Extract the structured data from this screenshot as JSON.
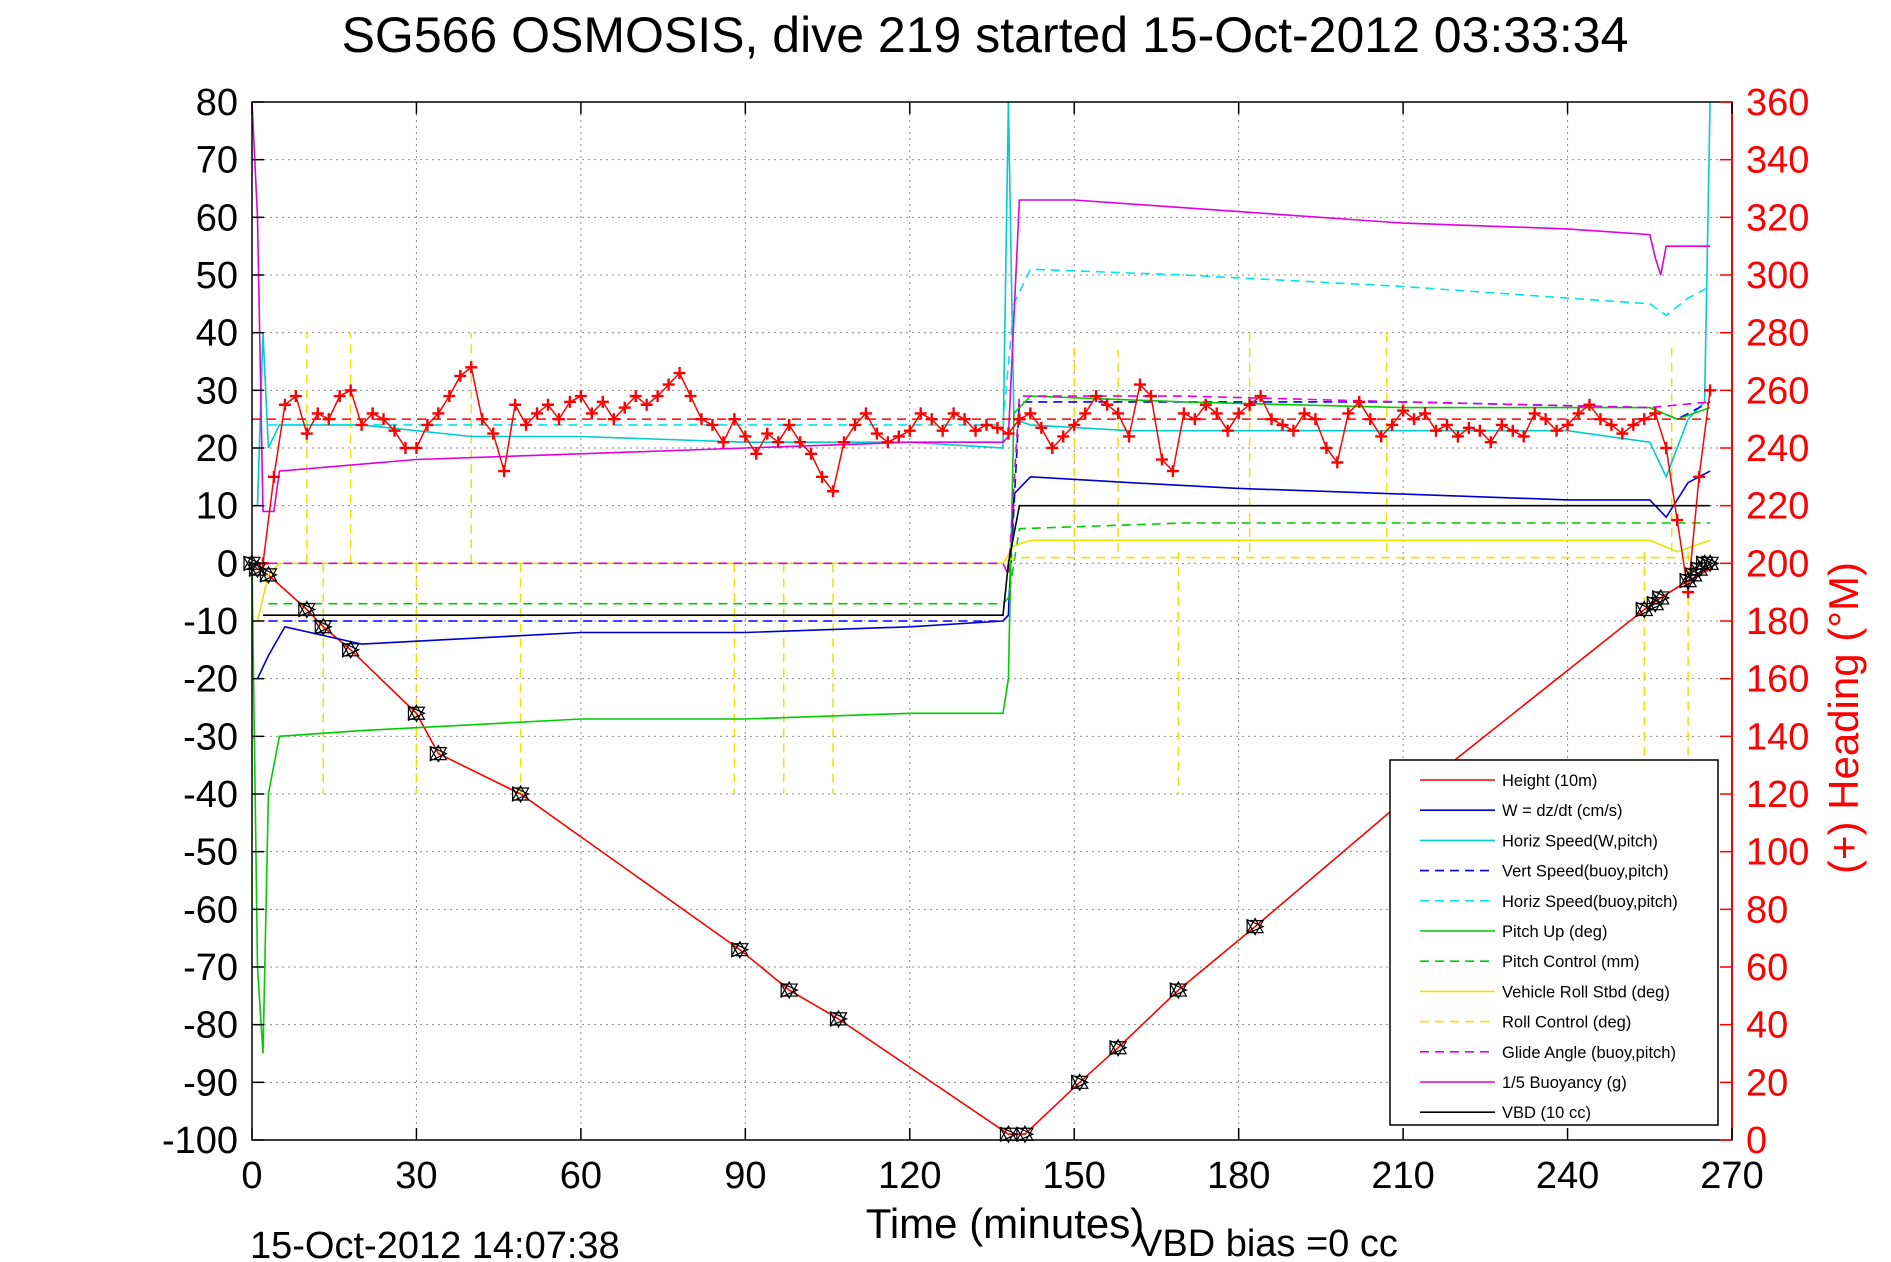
{
  "chart_data": {
    "type": "line",
    "title": "SG566 OSMOSIS, dive 219 started 15-Oct-2012 03:33:34",
    "xlabel": "Time (minutes)",
    "ylabel_right": "(+) Heading (°M)",
    "footer_left": "15-Oct-2012 14:07:38",
    "footer_right": "VBD bias =0 cc",
    "xlim": [
      0,
      270
    ],
    "ylim": [
      -100,
      80
    ],
    "ylim_right": [
      0,
      360
    ],
    "xticks": [
      0,
      30,
      60,
      90,
      120,
      150,
      180,
      210,
      240,
      270
    ],
    "yticks": [
      -100,
      -90,
      -80,
      -70,
      -60,
      -50,
      -40,
      -30,
      -20,
      -10,
      0,
      10,
      20,
      30,
      40,
      50,
      60,
      70,
      80
    ],
    "yticks_right": [
      0,
      20,
      40,
      60,
      80,
      100,
      120,
      140,
      160,
      180,
      200,
      220,
      240,
      260,
      280,
      300,
      320,
      340,
      360
    ],
    "grid": true,
    "legend_position": "bottom-right",
    "colors": {
      "axis_right": "#ff0000"
    },
    "series": [
      {
        "name": "Height (10m)",
        "color": "#ff0000",
        "dash": "solid",
        "x": [
          0,
          1,
          3,
          10,
          13,
          18,
          30,
          34,
          49,
          89,
          98,
          107,
          138,
          141,
          151,
          158,
          169,
          183,
          209,
          254,
          257,
          262,
          264,
          266,
          267
        ],
        "y": [
          0,
          -1,
          -2,
          -8,
          -11,
          -15,
          -26,
          -33,
          -40,
          -67,
          -74,
          -79,
          -99,
          -99,
          -90,
          -84,
          -74,
          -63,
          -42,
          -8,
          -6,
          -3,
          -2,
          -1,
          0
        ]
      },
      {
        "name": "W = dz/dt (cm/s)",
        "color": "#0000cc",
        "dash": "solid",
        "x": [
          1,
          3,
          6,
          20,
          40,
          60,
          90,
          120,
          137,
          138,
          139,
          142,
          160,
          180,
          210,
          240,
          255,
          258,
          262,
          266
        ],
        "y": [
          -20,
          -16,
          -11,
          -14,
          -13,
          -12,
          -12,
          -11,
          -10,
          -9,
          12,
          15,
          14,
          13,
          12,
          11,
          11,
          8,
          14,
          16
        ]
      },
      {
        "name": "Horiz Speed(W,pitch)",
        "color": "#00cccc",
        "dash": "solid",
        "x": [
          1,
          2,
          3,
          5,
          20,
          40,
          60,
          90,
          120,
          137,
          138,
          139,
          142,
          160,
          180,
          210,
          240,
          255,
          258,
          262,
          265,
          266
        ],
        "y": [
          10,
          40,
          20,
          24,
          24,
          22,
          22,
          21,
          21,
          20,
          80,
          25,
          24,
          23,
          23,
          23,
          23,
          21,
          15,
          25,
          28,
          80
        ]
      },
      {
        "name": "Vert Speed(buoy,pitch)",
        "color": "#0000ff",
        "dash": "dashed",
        "x": [
          3,
          137,
          138,
          140,
          170,
          210,
          255,
          260,
          266
        ],
        "y": [
          -10,
          -10,
          -9,
          28,
          28,
          28,
          27,
          25,
          28
        ]
      },
      {
        "name": "Horiz Speed(buoy,pitch)",
        "color": "#00e5e5",
        "dash": "dashed",
        "x": [
          3,
          137,
          139,
          142,
          170,
          210,
          240,
          255,
          258,
          262,
          266
        ],
        "y": [
          24,
          24,
          45,
          51,
          50,
          48,
          46,
          45,
          43,
          46,
          48
        ]
      },
      {
        "name": "Pitch Up (deg)",
        "color": "#00cc00",
        "dash": "solid",
        "x": [
          0,
          1,
          2,
          3,
          5,
          20,
          40,
          60,
          90,
          120,
          137,
          138,
          139,
          142,
          170,
          210,
          255,
          260,
          266
        ],
        "y": [
          0,
          -70,
          -85,
          -40,
          -30,
          -29,
          -28,
          -27,
          -27,
          -26,
          -26,
          -20,
          26,
          29,
          28,
          27,
          27,
          25,
          27
        ]
      },
      {
        "name": "Pitch Control (mm)",
        "color": "#00cc00",
        "dash": "dashed",
        "x": [
          3,
          137,
          138,
          140,
          170,
          210,
          255,
          266
        ],
        "y": [
          -7,
          -7,
          -6,
          6,
          7,
          7,
          7,
          7
        ]
      },
      {
        "name": "Vehicle Roll Stbd (deg)",
        "color": "#e6e600",
        "dash": "solid",
        "x": [
          1,
          3,
          5,
          40,
          80,
          120,
          137,
          139,
          142,
          170,
          210,
          255,
          260,
          266
        ],
        "y": [
          -10,
          -2,
          0,
          0,
          0,
          0,
          0,
          3,
          4,
          4,
          4,
          4,
          2,
          4
        ]
      },
      {
        "name": "Roll Control (deg)",
        "color": "#e6e600",
        "dash": "dashed",
        "x": [
          1,
          137,
          139,
          266
        ],
        "y": [
          0,
          0,
          1,
          1
        ]
      },
      {
        "name": "Glide Angle (buoy,pitch)",
        "color": "#e000e0",
        "dash": "dashed",
        "x": [
          3,
          137,
          138,
          140,
          170,
          210,
          255,
          266
        ],
        "y": [
          0,
          0,
          -2,
          29,
          29,
          28,
          27,
          28
        ]
      },
      {
        "name": "1/5 Buoyancy (g)",
        "color": "#e000e0",
        "dash": "solid",
        "x": [
          0,
          1,
          2,
          4,
          5,
          30,
          60,
          90,
          120,
          137,
          138,
          140,
          150,
          180,
          210,
          240,
          255,
          256,
          257,
          258,
          259,
          262,
          266
        ],
        "y": [
          80,
          60,
          9,
          9,
          16,
          18,
          19,
          20,
          21,
          21,
          22,
          63,
          63,
          61,
          59,
          58,
          57,
          53,
          50,
          55,
          55,
          55,
          55
        ]
      },
      {
        "name": "VBD (10 cc)",
        "color": "#000000",
        "dash": "solid",
        "x": [
          2,
          3,
          137,
          138,
          140,
          150,
          180,
          210,
          240,
          266
        ],
        "y": [
          -9,
          -9,
          -9,
          0,
          10,
          10,
          10,
          10,
          10,
          10
        ]
      }
    ],
    "heading_series": {
      "color": "#ff0000",
      "marker": "plus",
      "mean_line": 250,
      "x": [
        2,
        4,
        6,
        8,
        10,
        12,
        14,
        16,
        18,
        20,
        22,
        24,
        26,
        28,
        30,
        32,
        34,
        36,
        38,
        40,
        42,
        44,
        46,
        48,
        50,
        52,
        54,
        56,
        58,
        60,
        62,
        64,
        66,
        68,
        70,
        72,
        74,
        76,
        78,
        80,
        82,
        84,
        86,
        88,
        90,
        92,
        94,
        96,
        98,
        100,
        102,
        104,
        106,
        108,
        110,
        112,
        114,
        116,
        118,
        120,
        122,
        124,
        126,
        128,
        130,
        132,
        134,
        136,
        138,
        140,
        142,
        144,
        146,
        148,
        150,
        152,
        154,
        156,
        158,
        160,
        162,
        164,
        166,
        168,
        170,
        172,
        174,
        176,
        178,
        180,
        182,
        184,
        186,
        188,
        190,
        192,
        194,
        196,
        198,
        200,
        202,
        204,
        206,
        208,
        210,
        212,
        214,
        216,
        218,
        220,
        222,
        224,
        226,
        228,
        230,
        232,
        234,
        236,
        238,
        240,
        242,
        244,
        246,
        248,
        250,
        252,
        254,
        256,
        258,
        260,
        262,
        264,
        266
      ],
      "y": [
        200,
        230,
        255,
        258,
        245,
        252,
        250,
        258,
        260,
        248,
        252,
        250,
        246,
        240,
        240,
        248,
        252,
        258,
        265,
        268,
        250,
        245,
        232,
        255,
        248,
        252,
        255,
        250,
        256,
        258,
        252,
        256,
        250,
        254,
        258,
        255,
        258,
        262,
        266,
        258,
        250,
        248,
        242,
        250,
        244,
        238,
        245,
        242,
        248,
        242,
        238,
        230,
        225,
        242,
        248,
        252,
        245,
        242,
        244,
        246,
        252,
        250,
        246,
        252,
        250,
        246,
        248,
        247,
        245,
        250,
        252,
        247,
        240,
        244,
        248,
        252,
        258,
        255,
        252,
        244,
        262,
        258,
        236,
        232,
        252,
        250,
        255,
        252,
        246,
        252,
        255,
        258,
        250,
        248,
        246,
        252,
        250,
        240,
        235,
        252,
        256,
        250,
        244,
        248,
        253,
        250,
        252,
        246,
        248,
        244,
        247,
        246,
        242,
        248,
        246,
        244,
        252,
        250,
        246,
        248,
        252,
        255,
        250,
        248,
        245,
        248,
        250,
        252,
        240,
        215,
        190,
        230,
        260
      ]
    },
    "markers": {
      "x": [
        0,
        1,
        3,
        10,
        13,
        18,
        30,
        34,
        49,
        89,
        98,
        107,
        138,
        141,
        151,
        158,
        169,
        183,
        254,
        256,
        257,
        262,
        263,
        264,
        265,
        266
      ],
      "y": [
        0,
        -1,
        -2,
        -8,
        -11,
        -15,
        -26,
        -33,
        -40,
        -67,
        -74,
        -79,
        -99,
        -99,
        -90,
        -84,
        -74,
        -63,
        -8,
        -7,
        -6,
        -3,
        -2,
        -1,
        0,
        0
      ]
    },
    "spikes": [
      {
        "x": 10,
        "from": 0,
        "to": 40,
        "color": "#e6e600",
        "dash": "dashed"
      },
      {
        "x": 13,
        "from": 0,
        "to": -40,
        "color": "#e6e600",
        "dash": "dashed"
      },
      {
        "x": 18,
        "from": 0,
        "to": 40,
        "color": "#e6e600",
        "dash": "dashed"
      },
      {
        "x": 30,
        "from": 0,
        "to": -40,
        "color": "#e6e600",
        "dash": "dashed"
      },
      {
        "x": 40,
        "from": 0,
        "to": 40,
        "color": "#e6e600",
        "dash": "dashed"
      },
      {
        "x": 49,
        "from": 0,
        "to": -40,
        "color": "#e6e600",
        "dash": "dashed"
      },
      {
        "x": 88,
        "from": 0,
        "to": -40,
        "color": "#e6e600",
        "dash": "dashed"
      },
      {
        "x": 97,
        "from": 0,
        "to": -40,
        "color": "#e6e600",
        "dash": "dashed"
      },
      {
        "x": 106,
        "from": 0,
        "to": -40,
        "color": "#e6e600",
        "dash": "dashed"
      },
      {
        "x": 150,
        "from": 2,
        "to": 38,
        "color": "#e6e600",
        "dash": "dashed"
      },
      {
        "x": 158,
        "from": 2,
        "to": 37,
        "color": "#e6e600",
        "dash": "dashed"
      },
      {
        "x": 169,
        "from": 2,
        "to": -40,
        "color": "#e6e600",
        "dash": "dashed"
      },
      {
        "x": 182,
        "from": 2,
        "to": 40,
        "color": "#e6e600",
        "dash": "dashed"
      },
      {
        "x": 207,
        "from": 2,
        "to": 40,
        "color": "#e6e600",
        "dash": "dashed"
      },
      {
        "x": 254,
        "from": 2,
        "to": -40,
        "color": "#e6e600",
        "dash": "dashed"
      },
      {
        "x": 259,
        "from": 2,
        "to": 38,
        "color": "#e6e600",
        "dash": "dashed"
      },
      {
        "x": 262,
        "from": 2,
        "to": -40,
        "color": "#e6e600",
        "dash": "dashed"
      }
    ]
  }
}
